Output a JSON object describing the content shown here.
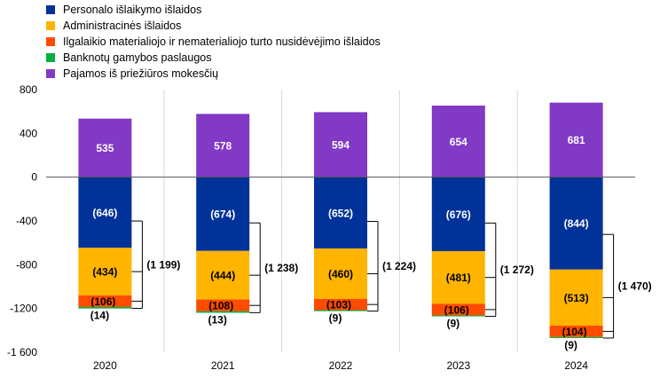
{
  "chart_data": {
    "type": "bar",
    "stacked": true,
    "categories": [
      "2020",
      "2021",
      "2022",
      "2023",
      "2024"
    ],
    "ylim": [
      -1600,
      800
    ],
    "yticks": [
      800,
      400,
      0,
      -400,
      -800,
      -1200,
      -1600
    ],
    "ytick_labels": [
      "800",
      "400",
      "0",
      "-400",
      "-800",
      "-1200",
      "-1 600"
    ],
    "grid": "vertical",
    "legend_position": "top-left",
    "series": [
      {
        "name": "Personalo išlaikymo išlaidos",
        "color": "#003299",
        "values": [
          -646,
          -674,
          -652,
          -676,
          -844
        ],
        "labels": [
          "(646)",
          "(674)",
          "(652)",
          "(676)",
          "(844)"
        ]
      },
      {
        "name": "Administracinės išlaidos",
        "color": "#FFB400",
        "values": [
          -434,
          -444,
          -460,
          -481,
          -513
        ],
        "labels": [
          "(434)",
          "(444)",
          "(460)",
          "(481)",
          "(513)"
        ]
      },
      {
        "name": "Ilgalaikio materialiojo ir nematerialiojo turto nusidėvėjimo išlaidos",
        "color": "#FF4B00",
        "values": [
          -106,
          -108,
          -103,
          -106,
          -104
        ],
        "labels": [
          "(106)",
          "(108)",
          "(103)",
          "(106)",
          "(104)"
        ]
      },
      {
        "name": "Banknotų gamybos paslaugos",
        "color": "#00B140",
        "values": [
          -14,
          -13,
          -9,
          -9,
          -9
        ],
        "labels": [
          "(14)",
          "(13)",
          "(9)",
          "(9)",
          "(9)"
        ]
      },
      {
        "name": "Pajamos iš priežiūros mokesčių",
        "color": "#8139C6",
        "values": [
          535,
          578,
          594,
          654,
          681
        ],
        "labels": [
          "535",
          "578",
          "594",
          "654",
          "681"
        ]
      }
    ],
    "totals": {
      "values": [
        -1199,
        -1238,
        -1224,
        -1272,
        -1470
      ],
      "labels": [
        "(1 199)",
        "(1 238)",
        "(1 224)",
        "(1 272)",
        "(1 470)"
      ]
    }
  }
}
